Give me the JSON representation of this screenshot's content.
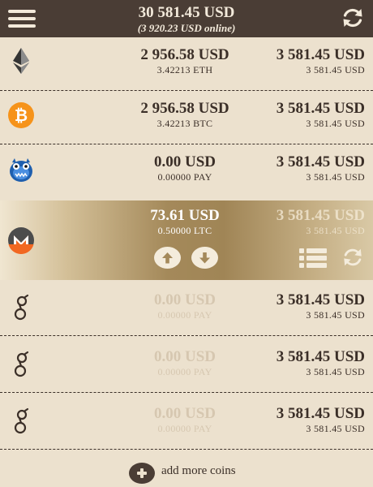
{
  "header": {
    "total": "30 581.45 USD",
    "online": "(3 920.23 USD online)"
  },
  "coins": [
    {
      "icon": "ethereum-icon",
      "usd": "2 956.58 USD",
      "amount": "3.42213 ETH",
      "right_usd": "3 581.45 USD",
      "right_sub": "3 581.45 USD"
    },
    {
      "icon": "bitcoin-icon",
      "usd": "2 956.58 USD",
      "amount": "3.42213 BTC",
      "right_usd": "3 581.45 USD",
      "right_sub": "3 581.45 USD"
    },
    {
      "icon": "monster-icon",
      "usd": "0.00 USD",
      "amount": "0.00000 PAY",
      "right_usd": "3 581.45 USD",
      "right_sub": "3 581.45 USD"
    },
    {
      "icon": "monero-icon",
      "usd": "73.61 USD",
      "amount": "0.50000 LTC",
      "right_usd": "3 581.45 USD",
      "right_sub": "3 581.45 USD"
    },
    {
      "icon": "golem-icon",
      "usd": "0.00 USD",
      "amount": "0.00000 PAY",
      "right_usd": "3 581.45 USD",
      "right_sub": "3 581.45 USD"
    },
    {
      "icon": "golem-icon",
      "usd": "0.00 USD",
      "amount": "0.00000 PAY",
      "right_usd": "3 581.45 USD",
      "right_sub": "3 581.45 USD"
    },
    {
      "icon": "golem-icon",
      "usd": "0.00 USD",
      "amount": "0.00000 PAY",
      "right_usd": "3 581.45 USD",
      "right_sub": "3 581.45 USD"
    }
  ],
  "add_more_label": "add more coins",
  "colors": {
    "header_bg": "#4a3d35",
    "page_bg": "#ece1ce",
    "text": "#3b2f28",
    "bitcoin": "#f6931a",
    "monero": "#f26822",
    "accent_gold": "#a4895a"
  }
}
